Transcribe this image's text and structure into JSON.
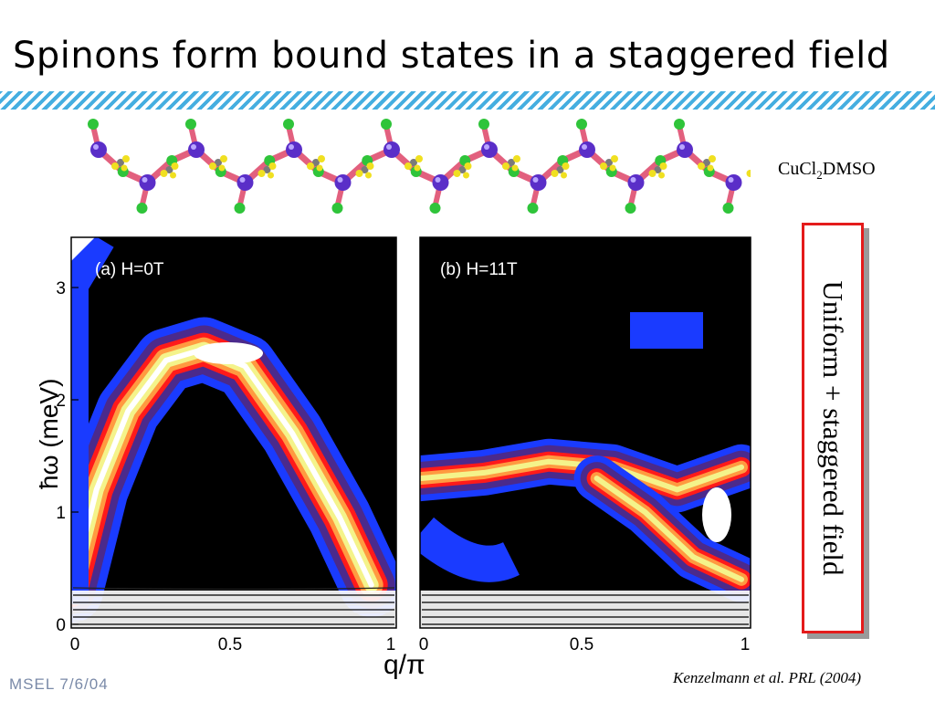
{
  "slide": {
    "title": "Spinons form bound states in a staggered field",
    "compound_prefix": "CuCl",
    "compound_sub": "2",
    "compound_suffix": "DMSO",
    "box_label": "Uniform + staggered field",
    "citation": "Kenzelmann et al. PRL (2004)",
    "footer": "MSEL  7/6/04"
  },
  "colors": {
    "title": "#000000",
    "stripe": "#45aee0",
    "box_border": "#e41b1b",
    "map_background": "#000000",
    "level_blue": "#1a3bff",
    "level_purple": "#4b2a8c",
    "level_red": "#ff1a1a",
    "level_orange": "#ff9a40",
    "level_yellow": "#f4f38a",
    "level_white": "#ffffff"
  },
  "chart_data": [
    {
      "type": "heatmap",
      "panel_label": "(a) H=0T",
      "ylabel": "ħω (meV)",
      "xlabel": "q/π",
      "xlim": [
        0,
        1
      ],
      "ylim": [
        0,
        3.5
      ],
      "x_ticks": [
        "0",
        "0.5",
        "1"
      ],
      "y_ticks": [
        "0",
        "1",
        "2",
        "3"
      ],
      "dispersion": [
        {
          "q": 0.0,
          "E": 0.3
        },
        {
          "q": 0.08,
          "E": 1.2
        },
        {
          "q": 0.18,
          "E": 1.9
        },
        {
          "q": 0.3,
          "E": 2.35
        },
        {
          "q": 0.42,
          "E": 2.45
        },
        {
          "q": 0.55,
          "E": 2.3
        },
        {
          "q": 0.7,
          "E": 1.7
        },
        {
          "q": 0.85,
          "E": 0.95
        },
        {
          "q": 0.95,
          "E": 0.35
        }
      ]
    },
    {
      "type": "heatmap",
      "panel_label": "(b) H=11T",
      "xlabel": "q/π",
      "xlim": [
        0,
        1
      ],
      "ylim": [
        0,
        3.5
      ],
      "x_ticks": [
        "0",
        "0.5",
        "1"
      ],
      "y_ticks": [],
      "branches": [
        {
          "name": "",
          "points": [
            {
              "q": 0.0,
              "E": 1.3
            },
            {
              "q": 0.2,
              "E": 1.35
            },
            {
              "q": 0.4,
              "E": 1.45
            },
            {
              "q": 0.6,
              "E": 1.4
            },
            {
              "q": 0.8,
              "E": 1.2
            },
            {
              "q": 1.0,
              "E": 1.4
            }
          ]
        },
        {
          "name": "",
          "points": [
            {
              "q": 0.55,
              "E": 1.3
            },
            {
              "q": 0.7,
              "E": 1.0
            },
            {
              "q": 0.85,
              "E": 0.6
            },
            {
              "q": 1.0,
              "E": 0.4
            }
          ]
        }
      ]
    }
  ]
}
